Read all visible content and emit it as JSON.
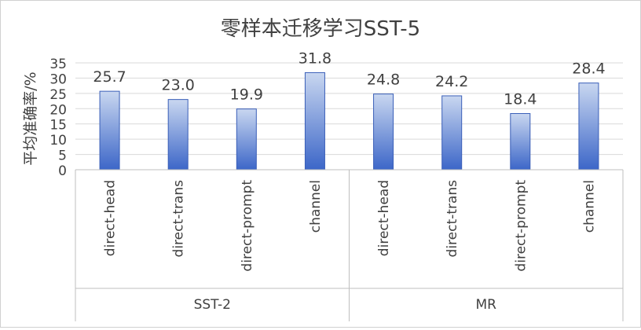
{
  "chart_data": {
    "type": "bar",
    "title": "零样本迁移学习SST-5",
    "ylabel": "平均准确率/%",
    "xlabel": "",
    "ylim": [
      0,
      35
    ],
    "yticks": [
      0,
      5,
      10,
      15,
      20,
      25,
      30,
      35
    ],
    "grid": true,
    "legend": "none",
    "groups": [
      {
        "name": "SST-2",
        "categories": [
          "direct-head",
          "direct-trans",
          "direct-prompt",
          "channel"
        ],
        "values": [
          25.7,
          23.0,
          19.9,
          31.8
        ]
      },
      {
        "name": "MR",
        "categories": [
          "direct-head",
          "direct-trans",
          "direct-prompt",
          "channel"
        ],
        "values": [
          24.8,
          24.2,
          18.4,
          28.4
        ]
      }
    ],
    "colors": {
      "bar_top": "#c9d7f0",
      "bar_bottom": "#3c66c8",
      "bar_edge": "#3a5fb8",
      "grid": "#d9d9d9",
      "axis": "#bfbfbf",
      "text": "#404040",
      "title": "#404040"
    }
  }
}
